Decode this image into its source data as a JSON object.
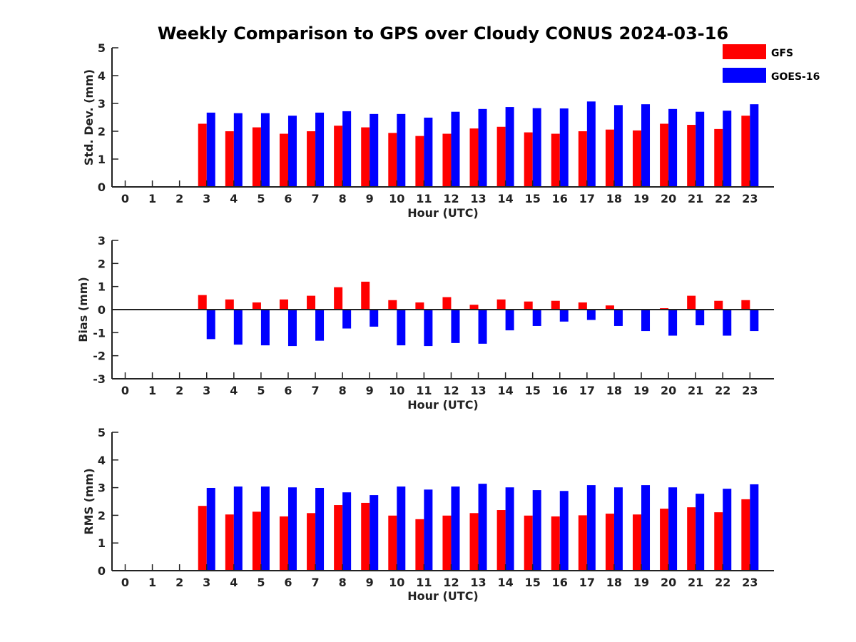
{
  "figure_title": "Weekly Comparison to GPS over Cloudy CONUS 2024-03-16",
  "legend": [
    {
      "name": "GFS",
      "color": "#ff0000"
    },
    {
      "name": "GOES-16",
      "color": "#0000ff"
    }
  ],
  "chart_data": [
    {
      "type": "bar",
      "ylabel": "Std. Dev. (mm)",
      "xlabel": "Hour (UTC)",
      "ylim": [
        0,
        5
      ],
      "yticks": [
        "0",
        "1",
        "2",
        "3",
        "4",
        "5"
      ],
      "categories": [
        "0",
        "1",
        "2",
        "3",
        "4",
        "5",
        "6",
        "7",
        "8",
        "9",
        "10",
        "11",
        "12",
        "13",
        "14",
        "15",
        "16",
        "17",
        "18",
        "19",
        "20",
        "21",
        "22",
        "23"
      ],
      "series": [
        {
          "name": "GFS",
          "color": "#ff0000",
          "values": [
            null,
            null,
            null,
            2.27,
            2.0,
            2.14,
            1.91,
            2.0,
            2.2,
            2.14,
            1.94,
            1.83,
            1.91,
            2.1,
            2.16,
            1.96,
            1.91,
            2.0,
            2.06,
            2.03,
            2.27,
            2.23,
            2.08,
            2.56
          ]
        },
        {
          "name": "GOES-16",
          "color": "#0000ff",
          "values": [
            null,
            null,
            null,
            2.67,
            2.65,
            2.65,
            2.56,
            2.67,
            2.72,
            2.62,
            2.62,
            2.49,
            2.7,
            2.8,
            2.87,
            2.83,
            2.82,
            3.07,
            2.94,
            2.97,
            2.8,
            2.7,
            2.74,
            2.97
          ]
        }
      ]
    },
    {
      "type": "bar",
      "ylabel": "Bias (mm)",
      "xlabel": "Hour (UTC)",
      "ylim": [
        -3,
        3
      ],
      "yticks": [
        "-3",
        "-2",
        "-1",
        "0",
        "1",
        "2",
        "3"
      ],
      "categories": [
        "0",
        "1",
        "2",
        "3",
        "4",
        "5",
        "6",
        "7",
        "8",
        "9",
        "10",
        "11",
        "12",
        "13",
        "14",
        "15",
        "16",
        "17",
        "18",
        "19",
        "20",
        "21",
        "22",
        "23"
      ],
      "series": [
        {
          "name": "GFS",
          "color": "#ff0000",
          "values": [
            null,
            null,
            null,
            0.63,
            0.44,
            0.31,
            0.44,
            0.6,
            0.97,
            1.21,
            0.41,
            0.31,
            0.54,
            0.21,
            0.44,
            0.35,
            0.38,
            0.31,
            0.18,
            0.03,
            0.06,
            0.6,
            0.38,
            0.41
          ]
        },
        {
          "name": "GOES-16",
          "color": "#0000ff",
          "values": [
            null,
            null,
            null,
            -1.28,
            -1.52,
            -1.55,
            -1.58,
            -1.35,
            -0.82,
            -0.74,
            -1.55,
            -1.58,
            -1.45,
            -1.48,
            -0.9,
            -0.71,
            -0.52,
            -0.45,
            -0.71,
            -0.93,
            -1.13,
            -0.68,
            -1.13,
            -0.93
          ]
        }
      ]
    },
    {
      "type": "bar",
      "ylabel": "RMS (mm)",
      "xlabel": "Hour (UTC)",
      "ylim": [
        0,
        5
      ],
      "yticks": [
        "0",
        "1",
        "2",
        "3",
        "4",
        "5"
      ],
      "categories": [
        "0",
        "1",
        "2",
        "3",
        "4",
        "5",
        "6",
        "7",
        "8",
        "9",
        "10",
        "11",
        "12",
        "13",
        "14",
        "15",
        "16",
        "17",
        "18",
        "19",
        "20",
        "21",
        "22",
        "23"
      ],
      "series": [
        {
          "name": "GFS",
          "color": "#ff0000",
          "values": [
            null,
            null,
            null,
            2.34,
            2.03,
            2.13,
            1.96,
            2.08,
            2.37,
            2.45,
            1.99,
            1.86,
            1.99,
            2.08,
            2.19,
            1.99,
            1.96,
            2.0,
            2.06,
            2.03,
            2.24,
            2.29,
            2.11,
            2.58
          ]
        },
        {
          "name": "GOES-16",
          "color": "#0000ff",
          "values": [
            null,
            null,
            null,
            2.99,
            3.04,
            3.04,
            3.01,
            2.99,
            2.83,
            2.73,
            3.04,
            2.93,
            3.04,
            3.14,
            3.01,
            2.91,
            2.88,
            3.09,
            3.01,
            3.09,
            3.01,
            2.78,
            2.96,
            3.12
          ]
        }
      ]
    }
  ]
}
